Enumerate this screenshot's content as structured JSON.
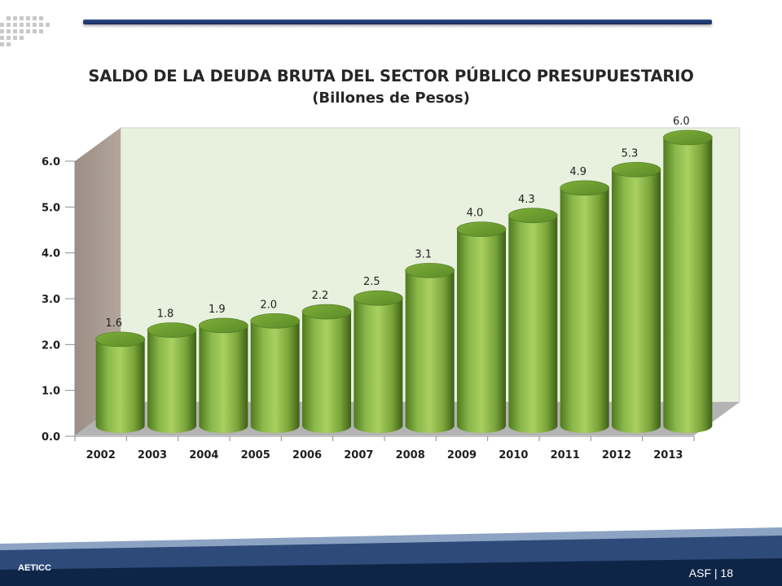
{
  "chart_data": {
    "type": "bar",
    "title": "SALDO DE LA DEUDA BRUTA DEL SECTOR PÚBLICO PRESUPUESTARIO",
    "subtitle": "(Billones de Pesos)",
    "categories": [
      "2002",
      "2003",
      "2004",
      "2005",
      "2006",
      "2007",
      "2008",
      "2009",
      "2010",
      "2011",
      "2012",
      "2013"
    ],
    "values": [
      1.6,
      1.8,
      1.9,
      2.0,
      2.2,
      2.5,
      3.1,
      4.0,
      4.3,
      4.9,
      5.3,
      6.0
    ],
    "value_labels": [
      "1.6",
      "1.8",
      "1.9",
      "2.0",
      "2.2",
      "2.5",
      "3.1",
      "4.0",
      "4.3",
      "4.9",
      "5.3",
      "6.0"
    ],
    "ylim": [
      0,
      6
    ],
    "yticks": [
      "0.0",
      "1.0",
      "2.0",
      "3.0",
      "4.0",
      "5.0",
      "6.0"
    ],
    "grid": false,
    "legend": "none",
    "style": "3d-cylinder",
    "colors": {
      "bar": "#8ab84a",
      "wall": "#e8f0de",
      "side_wall": "#a89a8f",
      "floor": "#b0b0b0"
    }
  },
  "footer": {
    "org": "AETICC",
    "page": "ASF | 18"
  },
  "colors": {
    "footer_dark": "#0f2548",
    "footer_mid": "#2d4a78",
    "footer_light": "#8ca3c3",
    "accent_line": "#23457f"
  }
}
